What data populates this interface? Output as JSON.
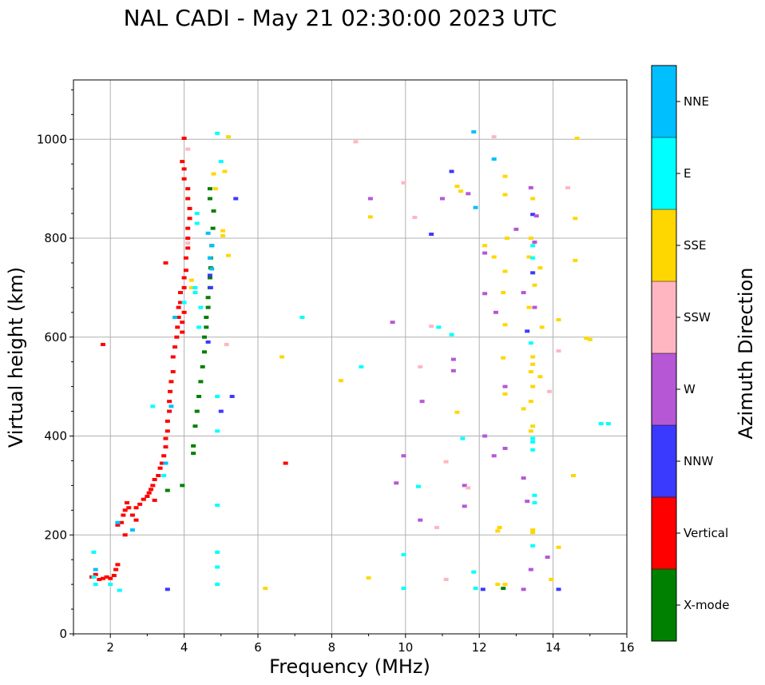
{
  "chart_data": {
    "type": "scatter",
    "title": "NAL CADI - May 21 02:30:00 2023 UTC",
    "xlabel": "Frequency (MHz)",
    "ylabel": "Virtual height (km)",
    "xlim": [
      1,
      16
    ],
    "ylim": [
      0,
      1120
    ],
    "xticks": [
      2,
      4,
      6,
      8,
      10,
      12,
      14,
      16
    ],
    "yticks": [
      0,
      200,
      400,
      600,
      800,
      1000
    ],
    "grid": true,
    "colorbar": {
      "label": "Azimuth Direction",
      "categories": [
        {
          "name": "X-mode",
          "color": "#008000"
        },
        {
          "name": "Vertical",
          "color": "#ff0000"
        },
        {
          "name": "NNW",
          "color": "#3a3aff"
        },
        {
          "name": "W",
          "color": "#b657d6"
        },
        {
          "name": "SSW",
          "color": "#ffb6c1"
        },
        {
          "name": "SSE",
          "color": "#ffd700"
        },
        {
          "name": "E",
          "color": "#00ffff"
        },
        {
          "name": "NNE",
          "color": "#00bfff"
        }
      ]
    },
    "series": [
      {
        "name": "Vertical",
        "points": [
          [
            1.5,
            115
          ],
          [
            1.6,
            120
          ],
          [
            1.7,
            110
          ],
          [
            1.8,
            112
          ],
          [
            1.9,
            115
          ],
          [
            2.0,
            112
          ],
          [
            2.1,
            118
          ],
          [
            2.15,
            130
          ],
          [
            2.2,
            140
          ],
          [
            2.2,
            220
          ],
          [
            2.3,
            225
          ],
          [
            2.35,
            240
          ],
          [
            2.4,
            250
          ],
          [
            2.45,
            265
          ],
          [
            2.5,
            255
          ],
          [
            2.6,
            240
          ],
          [
            2.7,
            255
          ],
          [
            2.8,
            262
          ],
          [
            2.9,
            272
          ],
          [
            3.0,
            278
          ],
          [
            3.05,
            285
          ],
          [
            3.1,
            292
          ],
          [
            3.15,
            300
          ],
          [
            3.2,
            312
          ],
          [
            3.3,
            320
          ],
          [
            3.35,
            335
          ],
          [
            3.4,
            345
          ],
          [
            3.45,
            360
          ],
          [
            3.5,
            378
          ],
          [
            3.5,
            395
          ],
          [
            3.55,
            410
          ],
          [
            3.55,
            430
          ],
          [
            3.6,
            450
          ],
          [
            3.6,
            470
          ],
          [
            3.62,
            490
          ],
          [
            3.65,
            510
          ],
          [
            3.7,
            530
          ],
          [
            3.7,
            560
          ],
          [
            3.75,
            580
          ],
          [
            3.8,
            600
          ],
          [
            3.82,
            620
          ],
          [
            3.85,
            640
          ],
          [
            3.85,
            660
          ],
          [
            3.9,
            670
          ],
          [
            3.9,
            690
          ],
          [
            3.95,
            610
          ],
          [
            3.95,
            630
          ],
          [
            4.0,
            650
          ],
          [
            4.0,
            700
          ],
          [
            4.0,
            720
          ],
          [
            4.05,
            735
          ],
          [
            4.05,
            760
          ],
          [
            4.1,
            780
          ],
          [
            4.1,
            800
          ],
          [
            4.1,
            820
          ],
          [
            4.15,
            840
          ],
          [
            4.15,
            860
          ],
          [
            4.1,
            880
          ],
          [
            4.1,
            900
          ],
          [
            4.0,
            920
          ],
          [
            4.0,
            940
          ],
          [
            3.95,
            955
          ],
          [
            4.0,
            1002
          ],
          [
            3.5,
            750
          ],
          [
            1.8,
            585
          ],
          [
            6.75,
            345
          ],
          [
            2.7,
            230
          ],
          [
            2.4,
            200
          ],
          [
            3.2,
            270
          ]
        ]
      },
      {
        "name": "X-mode",
        "points": [
          [
            4.25,
            365
          ],
          [
            4.25,
            380
          ],
          [
            4.3,
            420
          ],
          [
            4.35,
            450
          ],
          [
            4.4,
            480
          ],
          [
            4.45,
            510
          ],
          [
            4.5,
            540
          ],
          [
            4.55,
            570
          ],
          [
            4.55,
            600
          ],
          [
            4.6,
            620
          ],
          [
            4.6,
            640
          ],
          [
            4.65,
            660
          ],
          [
            4.65,
            680
          ],
          [
            4.7,
            700
          ],
          [
            4.7,
            720
          ],
          [
            4.72,
            740
          ],
          [
            4.72,
            760
          ],
          [
            4.75,
            785
          ],
          [
            4.78,
            820
          ],
          [
            4.8,
            855
          ],
          [
            4.7,
            880
          ],
          [
            4.7,
            900
          ],
          [
            3.95,
            300
          ],
          [
            3.55,
            290
          ],
          [
            12.65,
            92
          ]
        ]
      },
      {
        "name": "NNW",
        "points": [
          [
            4.7,
            725
          ],
          [
            4.72,
            700
          ],
          [
            4.65,
            590
          ],
          [
            5.0,
            450
          ],
          [
            5.3,
            480
          ],
          [
            11.25,
            935
          ],
          [
            10.7,
            808
          ],
          [
            13.45,
            848
          ],
          [
            13.45,
            730
          ],
          [
            13.3,
            612
          ],
          [
            14.15,
            90
          ],
          [
            12.1,
            90
          ],
          [
            3.55,
            90
          ],
          [
            5.4,
            880
          ]
        ]
      },
      {
        "name": "W",
        "points": [
          [
            13.2,
            315
          ],
          [
            13.55,
            845
          ],
          [
            13.5,
            792
          ],
          [
            13.2,
            690
          ],
          [
            12.45,
            650
          ],
          [
            12.15,
            688
          ],
          [
            12.15,
            770
          ],
          [
            9.05,
            880
          ],
          [
            10.45,
            470
          ],
          [
            11.3,
            555
          ],
          [
            11.3,
            532
          ],
          [
            11.6,
            300
          ],
          [
            11.6,
            258
          ],
          [
            12.15,
            400
          ],
          [
            12.4,
            360
          ],
          [
            12.7,
            375
          ],
          [
            12.7,
            500
          ],
          [
            13.0,
            818
          ],
          [
            13.3,
            268
          ],
          [
            13.5,
            660
          ],
          [
            13.4,
            130
          ],
          [
            13.85,
            155
          ],
          [
            13.2,
            90
          ],
          [
            9.95,
            360
          ],
          [
            9.65,
            630
          ],
          [
            10.4,
            230
          ],
          [
            9.75,
            305
          ],
          [
            13.4,
            902
          ],
          [
            11.7,
            890
          ],
          [
            11.0,
            880
          ]
        ]
      },
      {
        "name": "SSW",
        "points": [
          [
            8.65,
            995
          ],
          [
            12.4,
            1005
          ],
          [
            14.4,
            902
          ],
          [
            14.15,
            572
          ],
          [
            13.9,
            490
          ],
          [
            11.7,
            295
          ],
          [
            11.1,
            110
          ],
          [
            10.85,
            215
          ],
          [
            11.1,
            348
          ],
          [
            10.4,
            540
          ],
          [
            10.25,
            842
          ],
          [
            9.95,
            912
          ],
          [
            10.7,
            622
          ],
          [
            5.15,
            585
          ],
          [
            4.1,
            980
          ],
          [
            4.1,
            790
          ]
        ]
      },
      {
        "name": "SSE",
        "points": [
          [
            4.2,
            715
          ],
          [
            4.2,
            700
          ],
          [
            5.05,
            805
          ],
          [
            5.05,
            815
          ],
          [
            4.85,
            900
          ],
          [
            4.8,
            930
          ],
          [
            12.55,
            215
          ],
          [
            12.5,
            208
          ],
          [
            12.5,
            100
          ],
          [
            12.7,
            100
          ],
          [
            13.45,
            205
          ],
          [
            13.45,
            210
          ],
          [
            13.4,
            410
          ],
          [
            13.45,
            420
          ],
          [
            13.4,
            470
          ],
          [
            13.45,
            500
          ],
          [
            13.4,
            530
          ],
          [
            13.45,
            545
          ],
          [
            13.45,
            560
          ],
          [
            13.65,
            520
          ],
          [
            13.7,
            620
          ],
          [
            14.15,
            175
          ],
          [
            13.95,
            110
          ],
          [
            14.55,
            320
          ],
          [
            14.15,
            635
          ],
          [
            14.9,
            598
          ],
          [
            15.0,
            595
          ],
          [
            14.6,
            840
          ],
          [
            14.6,
            755
          ],
          [
            14.65,
            1002
          ],
          [
            12.7,
            925
          ],
          [
            12.7,
            888
          ],
          [
            12.75,
            800
          ],
          [
            12.7,
            733
          ],
          [
            12.65,
            690
          ],
          [
            12.4,
            762
          ],
          [
            12.15,
            785
          ],
          [
            13.2,
            455
          ],
          [
            12.7,
            485
          ],
          [
            12.65,
            558
          ],
          [
            12.7,
            625
          ],
          [
            13.4,
            800
          ],
          [
            13.45,
            880
          ],
          [
            13.35,
            660
          ],
          [
            11.4,
            448
          ],
          [
            11.5,
            895
          ],
          [
            11.4,
            905
          ],
          [
            9.05,
            843
          ],
          [
            8.25,
            512
          ],
          [
            9.0,
            113
          ],
          [
            6.2,
            92
          ],
          [
            6.65,
            560
          ],
          [
            5.2,
            1005
          ],
          [
            5.1,
            935
          ],
          [
            5.2,
            765
          ],
          [
            13.65,
            740
          ],
          [
            13.5,
            705
          ],
          [
            13.35,
            762
          ]
        ]
      },
      {
        "name": "E",
        "points": [
          [
            1.55,
            115
          ],
          [
            1.6,
            100
          ],
          [
            1.55,
            165
          ],
          [
            2.0,
            100
          ],
          [
            2.25,
            88
          ],
          [
            3.45,
            320
          ],
          [
            3.15,
            460
          ],
          [
            4.35,
            830
          ],
          [
            4.35,
            850
          ],
          [
            4.3,
            690
          ],
          [
            4.3,
            700
          ],
          [
            4.45,
            660
          ],
          [
            4.4,
            620
          ],
          [
            4.0,
            670
          ],
          [
            4.9,
            480
          ],
          [
            4.9,
            410
          ],
          [
            4.9,
            260
          ],
          [
            4.9,
            165
          ],
          [
            4.9,
            135
          ],
          [
            4.9,
            100
          ],
          [
            7.2,
            640
          ],
          [
            8.8,
            540
          ],
          [
            10.35,
            298
          ],
          [
            11.55,
            395
          ],
          [
            11.85,
            125
          ],
          [
            11.9,
            92
          ],
          [
            13.45,
            395
          ],
          [
            13.45,
            372
          ],
          [
            13.45,
            388
          ],
          [
            13.4,
            588
          ],
          [
            13.45,
            785
          ],
          [
            13.45,
            760
          ],
          [
            13.5,
            280
          ],
          [
            13.5,
            265
          ],
          [
            13.45,
            178
          ],
          [
            15.3,
            425
          ],
          [
            15.5,
            425
          ],
          [
            11.25,
            605
          ],
          [
            10.9,
            620
          ],
          [
            4.9,
            1012
          ],
          [
            9.95,
            160
          ],
          [
            9.95,
            92
          ],
          [
            5.0,
            955
          ]
        ]
      },
      {
        "name": "NNE",
        "points": [
          [
            11.85,
            1015
          ],
          [
            12.4,
            960
          ],
          [
            11.9,
            862
          ],
          [
            4.75,
            738
          ],
          [
            4.7,
            760
          ],
          [
            4.75,
            785
          ],
          [
            4.65,
            810
          ],
          [
            3.75,
            640
          ],
          [
            3.65,
            460
          ],
          [
            3.5,
            345
          ],
          [
            2.6,
            210
          ],
          [
            1.6,
            130
          ],
          [
            2.2,
            225
          ]
        ]
      }
    ]
  }
}
